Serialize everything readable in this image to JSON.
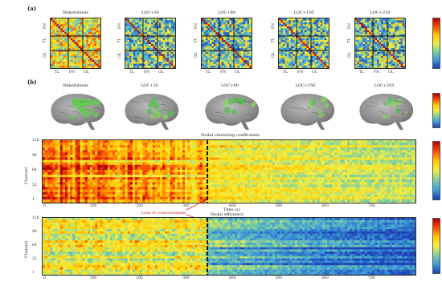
{
  "panel_a": {
    "letter": "(a)",
    "matrices": [
      {
        "title": "Wakefulness",
        "ticks_x": [
          "TL",
          "FN",
          "OL"
        ],
        "ticks_y": [
          "FN",
          "TL",
          "OL"
        ],
        "colormix": 0.35
      },
      {
        "title": "LOC+30",
        "ticks_x": [
          "TL",
          "FN",
          "OL"
        ],
        "ticks_y": [
          "FN",
          "TL",
          "OL"
        ],
        "colormix": 0.65
      },
      {
        "title": "LOC+90",
        "ticks_x": [
          "TL",
          "FN",
          "OL"
        ],
        "ticks_y": [
          "FN",
          "TL",
          "OL"
        ],
        "colormix": 0.72
      },
      {
        "title": "LOC+150",
        "ticks_x": [
          "TL",
          "FN",
          "OL"
        ],
        "ticks_y": [
          "FN",
          "TL",
          "OL"
        ],
        "colormix": 0.7
      },
      {
        "title": "LOC+210",
        "ticks_x": [
          "TL",
          "FN",
          "OL"
        ],
        "ticks_y": [
          "FN",
          "TL",
          "OL"
        ],
        "colormix": 0.78
      }
    ]
  },
  "panel_b": {
    "letter": "(b)",
    "titles": [
      "Wakefulness",
      "LOC+30",
      "LOC+90",
      "LOC+150",
      "LOC+210"
    ]
  },
  "panel_c": {
    "title": "Nodal clustering coefficients",
    "ylabel": "Channel",
    "xlabel": "Time (s)",
    "yticks": [
      "128",
      "96",
      "64",
      "32",
      "1"
    ],
    "xticks": [
      "0",
      "100",
      "200",
      "300",
      "400",
      "500",
      "600",
      "700"
    ],
    "loc_annotation": "Loss of consciousness"
  },
  "panel_d": {
    "title": "Nodal efficiency",
    "ylabel": "Channel",
    "yticks": [
      "128",
      "96",
      "64",
      "32",
      "1"
    ],
    "xticks": [
      "0",
      "100",
      "200",
      "300",
      "400",
      "500",
      "600",
      "700"
    ]
  },
  "colors": {
    "loc_line": "#111111",
    "annotation": "#d22020"
  }
}
